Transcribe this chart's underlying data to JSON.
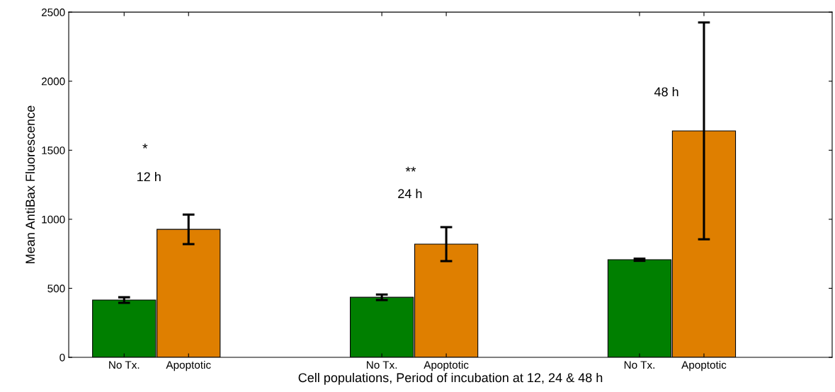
{
  "chart_data": {
    "type": "bar",
    "categories": [
      "No Tx.",
      "Apoptotic",
      null,
      null,
      "No Tx.",
      "Apoptotic",
      null,
      null,
      "No Tx.",
      "Apoptotic"
    ],
    "values": [
      415,
      927,
      null,
      null,
      435,
      820,
      null,
      null,
      707,
      1640
    ],
    "errors": [
      20,
      107,
      null,
      null,
      20,
      123,
      null,
      null,
      8,
      785
    ],
    "colors": [
      "#007f00",
      "#df7f00",
      "#ffffff",
      "#ffffff",
      "#007f00",
      "#df7f00",
      "#ffffff",
      "#ffffff",
      "#007f00",
      "#df7f00"
    ],
    "xlabel": "Cell populations, Period of incubation at 12, 24 & 48 h",
    "ylabel": "Mean AntiBax Fluorescence",
    "ylim": [
      0,
      2500
    ],
    "yticks": [
      0,
      500,
      1000,
      1500,
      2000,
      2500
    ],
    "annotations": [
      "*",
      "12 h",
      "**",
      "24 h",
      "48 h"
    ],
    "grid": false,
    "legend": false
  }
}
